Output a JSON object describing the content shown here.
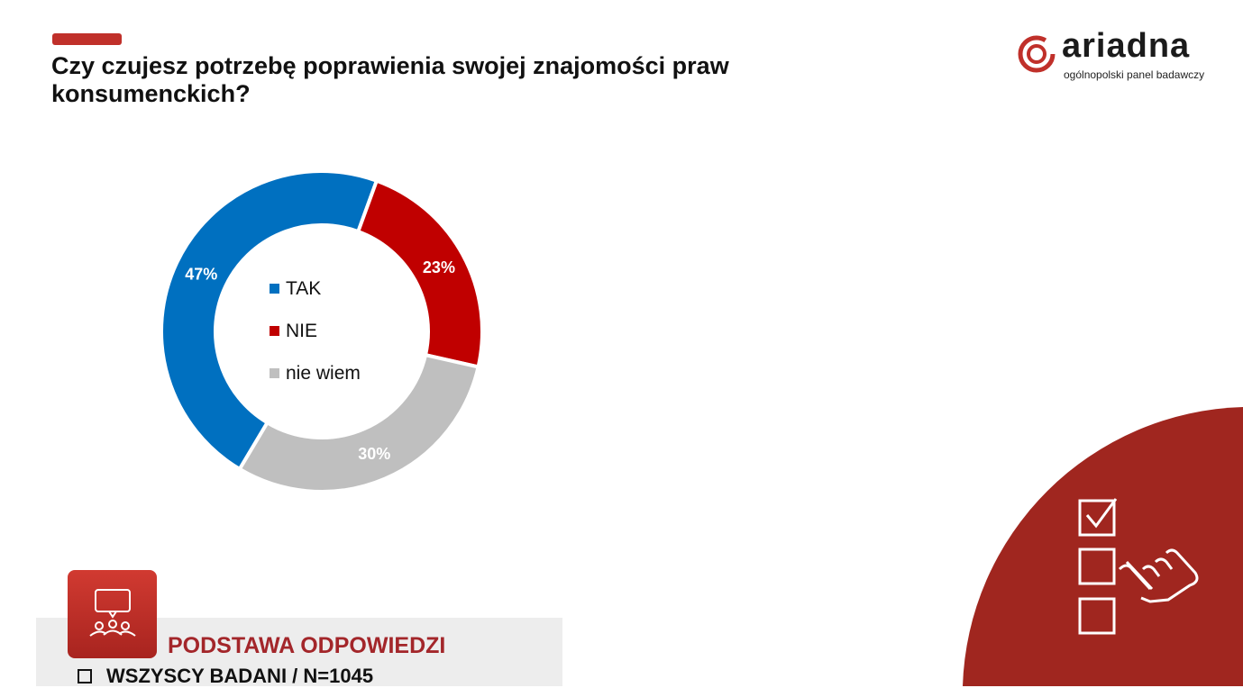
{
  "header": {
    "title": "Czy czujesz potrzebę poprawienia swojej znajomości praw konsumenckich?",
    "logo_text": "ariadna",
    "logo_subtitle": "ogólnopolski panel badawczy"
  },
  "chart_data": {
    "type": "pie",
    "variant": "donut",
    "categories": [
      "TAK",
      "NIE",
      "nie wiem"
    ],
    "values": [
      47,
      23,
      30
    ],
    "labels": [
      "47%",
      "23%",
      "30%"
    ],
    "colors": [
      "#0070c0",
      "#c00000",
      "#bfbfbf"
    ],
    "legend_position": "center"
  },
  "footer": {
    "panel_title": "PODSTAWA ODPOWIEDZI",
    "item": "WSZYSCY BADANI / N=1045",
    "badge_icon": "discussion-group-icon",
    "decor_icon": "checklist-hand-icon",
    "accent_color": "#a0261f"
  }
}
